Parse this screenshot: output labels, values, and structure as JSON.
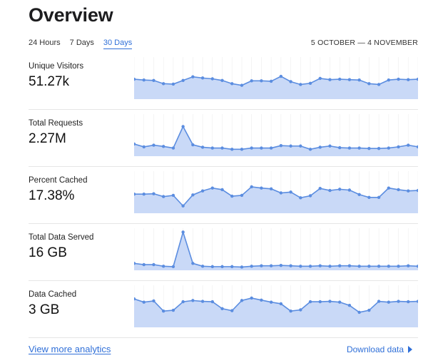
{
  "page": {
    "title": "Overview"
  },
  "tabs": [
    {
      "label": "24 Hours",
      "active": false
    },
    {
      "label": "7 Days",
      "active": false
    },
    {
      "label": "30 Days",
      "active": true
    }
  ],
  "date_range": "5 OCTOBER — 4 NOVEMBER",
  "colors": {
    "accent": "#2f6fd8",
    "area_fill": "#c9d9f7",
    "line": "#5b8de0"
  },
  "metrics": [
    {
      "label": "Unique Visitors",
      "value": "51.27k",
      "series": [
        49,
        47,
        46,
        38,
        37,
        46,
        55,
        52,
        50,
        46,
        38,
        34,
        45,
        45,
        44,
        56,
        43,
        36,
        39,
        51,
        48,
        49,
        48,
        47,
        38,
        36,
        47,
        49,
        48,
        49
      ]
    },
    {
      "label": "Total Requests",
      "value": "2.27M",
      "series": [
        30,
        23,
        27,
        24,
        20,
        73,
        28,
        22,
        20,
        20,
        17,
        17,
        20,
        20,
        20,
        26,
        25,
        25,
        17,
        22,
        25,
        21,
        20,
        20,
        19,
        19,
        20,
        23,
        27,
        23
      ]
    },
    {
      "label": "Percent Cached",
      "value": "17.38%",
      "series": [
        47,
        47,
        48,
        41,
        44,
        18,
        45,
        55,
        62,
        58,
        42,
        44,
        65,
        62,
        60,
        50,
        52,
        38,
        43,
        61,
        56,
        59,
        57,
        46,
        39,
        39,
        62,
        58,
        55,
        56
      ]
    },
    {
      "label": "Total Data Served",
      "value": "16 GB",
      "series": [
        17,
        14,
        14,
        10,
        9,
        94,
        17,
        10,
        9,
        9,
        9,
        8,
        10,
        11,
        11,
        12,
        11,
        10,
        10,
        11,
        10,
        11,
        11,
        10,
        10,
        10,
        10,
        10,
        11,
        10
      ]
    },
    {
      "label": "Data Cached",
      "value": "3 GB",
      "series": [
        70,
        62,
        65,
        40,
        42,
        63,
        66,
        64,
        63,
        46,
        41,
        66,
        72,
        67,
        62,
        58,
        40,
        43,
        63,
        63,
        64,
        62,
        54,
        37,
        42,
        64,
        62,
        64,
        63,
        64
      ]
    }
  ],
  "footer": {
    "view_more": "View more analytics",
    "download": "Download data"
  }
}
